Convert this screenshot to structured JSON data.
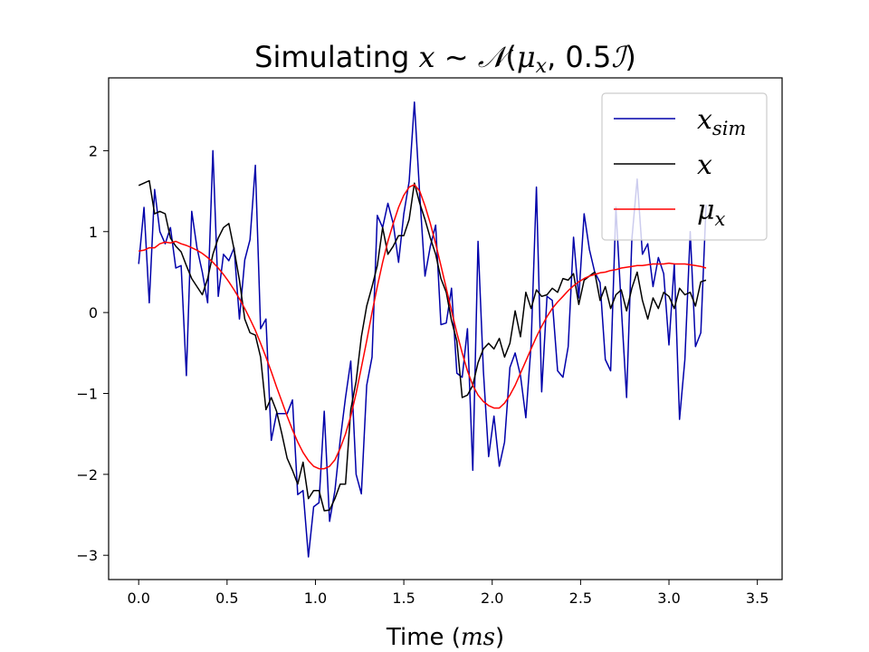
{
  "chart_data": {
    "type": "line",
    "title": "Simulating x ~ 𝒩(μx, 0.5ℐ)",
    "title_parts": {
      "prefix": "Simulating ",
      "var": "x",
      "sim": " ~ ",
      "dist": "𝒩",
      "open": "(",
      "mu": "μ",
      "mu_sub": "x",
      "comma": ", 0.5",
      "ident": "ℐ",
      "close": ")"
    },
    "xlabel": "Time (ms)",
    "xlabel_parts": {
      "prefix": "Time (",
      "unit": "ms",
      "suffix": ")"
    },
    "ylabel": "",
    "xlim": [
      -0.17,
      3.64
    ],
    "ylim": [
      -3.3,
      2.9
    ],
    "x_ticks": [
      0.0,
      0.5,
      1.0,
      1.5,
      2.0,
      2.5,
      3.0,
      3.5
    ],
    "x_tick_labels": [
      "0.0",
      "0.5",
      "1.0",
      "1.5",
      "2.0",
      "2.5",
      "3.0",
      "3.5"
    ],
    "y_ticks": [
      -3,
      -2,
      -1,
      0,
      1,
      2
    ],
    "y_tick_labels": [
      "−3",
      "−2",
      "−1",
      "0",
      "1",
      "2"
    ],
    "grid": false,
    "legend_position": "top-right",
    "x_start": 0.0,
    "x_step": 0.03,
    "series": [
      {
        "name": "x_sim",
        "legend_main": "x",
        "legend_sub": "sim",
        "color": "#0000aa",
        "values": [
          0.6,
          1.3,
          0.12,
          1.52,
          1.0,
          0.85,
          1.05,
          0.55,
          0.58,
          -0.78,
          1.25,
          0.8,
          0.5,
          0.12,
          2.0,
          0.2,
          0.72,
          0.64,
          0.8,
          -0.08,
          0.65,
          0.9,
          1.82,
          -0.2,
          -0.08,
          -1.58,
          -1.25,
          -1.25,
          -1.25,
          -1.08,
          -2.25,
          -2.2,
          -3.02,
          -2.4,
          -2.35,
          -1.22,
          -2.58,
          -2.2,
          -1.58,
          -1.05,
          -0.6,
          -2.0,
          -2.24,
          -0.9,
          -0.55,
          1.2,
          1.05,
          1.35,
          1.1,
          0.62,
          1.22,
          1.62,
          2.6,
          1.45,
          0.45,
          0.82,
          1.08,
          -0.15,
          -0.13,
          0.3,
          -0.75,
          -0.8,
          -0.2,
          -1.95,
          0.88,
          -0.72,
          -1.78,
          -1.28,
          -1.9,
          -1.6,
          -0.68,
          -0.5,
          -0.78,
          -1.3,
          -0.4,
          1.55,
          -0.98,
          0.2,
          0.15,
          -0.72,
          -0.8,
          -0.42,
          0.93,
          0.18,
          1.22,
          0.78,
          0.5,
          0.37,
          -0.58,
          -0.72,
          1.3,
          0.08,
          -1.05,
          0.9,
          1.65,
          0.72,
          0.85,
          0.32,
          0.68,
          0.48,
          -0.4,
          0.6,
          -1.32,
          -0.58,
          1.0,
          -0.42,
          -0.25,
          1.33
        ]
      },
      {
        "name": "x",
        "legend_main": "x",
        "legend_sub": "",
        "color": "#000000",
        "values": [
          1.57,
          1.6,
          1.63,
          1.22,
          1.25,
          1.22,
          0.92,
          0.82,
          0.75,
          0.58,
          0.42,
          0.32,
          0.22,
          0.42,
          0.72,
          0.92,
          1.05,
          1.1,
          0.78,
          0.4,
          -0.08,
          -0.25,
          -0.28,
          -0.55,
          -1.2,
          -1.05,
          -1.22,
          -1.5,
          -1.8,
          -1.95,
          -2.12,
          -1.85,
          -2.3,
          -2.2,
          -2.2,
          -2.45,
          -2.44,
          -2.3,
          -2.12,
          -2.12,
          -1.2,
          -0.85,
          -0.3,
          0.08,
          0.32,
          0.58,
          1.05,
          0.72,
          0.82,
          0.95,
          0.95,
          1.15,
          1.6,
          1.35,
          1.15,
          0.92,
          0.72,
          0.42,
          0.25,
          -0.1,
          -0.35,
          -1.05,
          -1.02,
          -0.9,
          -0.62,
          -0.45,
          -0.38,
          -0.45,
          -0.32,
          -0.55,
          -0.38,
          0.02,
          -0.3,
          0.25,
          0.05,
          0.28,
          0.2,
          0.22,
          0.3,
          0.25,
          0.42,
          0.4,
          0.48,
          0.1,
          0.4,
          0.45,
          0.5,
          0.15,
          0.32,
          0.05,
          0.22,
          0.28,
          0.02,
          0.3,
          0.5,
          0.15,
          -0.08,
          0.18,
          0.05,
          0.25,
          0.2,
          0.05,
          0.3,
          0.22,
          0.25,
          0.08,
          0.38,
          0.4
        ]
      },
      {
        "name": "μx",
        "legend_main": "μ",
        "legend_sub": "x",
        "color": "#ff0000",
        "values": [
          0.76,
          0.77,
          0.8,
          0.8,
          0.85,
          0.87,
          0.86,
          0.88,
          0.85,
          0.83,
          0.8,
          0.77,
          0.73,
          0.68,
          0.62,
          0.55,
          0.47,
          0.38,
          0.28,
          0.17,
          0.05,
          -0.08,
          -0.22,
          -0.38,
          -0.55,
          -0.73,
          -0.92,
          -1.1,
          -1.28,
          -1.45,
          -1.6,
          -1.73,
          -1.83,
          -1.9,
          -1.93,
          -1.93,
          -1.9,
          -1.82,
          -1.68,
          -1.5,
          -1.28,
          -1.0,
          -0.68,
          -0.35,
          0.0,
          0.32,
          0.62,
          0.88,
          1.1,
          1.3,
          1.45,
          1.55,
          1.58,
          1.5,
          1.32,
          1.1,
          0.85,
          0.58,
          0.3,
          0.02,
          -0.25,
          -0.5,
          -0.72,
          -0.9,
          -1.02,
          -1.1,
          -1.15,
          -1.18,
          -1.18,
          -1.12,
          -1.02,
          -0.9,
          -0.75,
          -0.6,
          -0.45,
          -0.3,
          -0.17,
          -0.05,
          0.05,
          0.13,
          0.2,
          0.27,
          0.33,
          0.38,
          0.42,
          0.45,
          0.47,
          0.49,
          0.5,
          0.52,
          0.53,
          0.55,
          0.56,
          0.57,
          0.58,
          0.58,
          0.59,
          0.6,
          0.6,
          0.6,
          0.61,
          0.6,
          0.6,
          0.6,
          0.59,
          0.58,
          0.57,
          0.55
        ]
      }
    ]
  }
}
